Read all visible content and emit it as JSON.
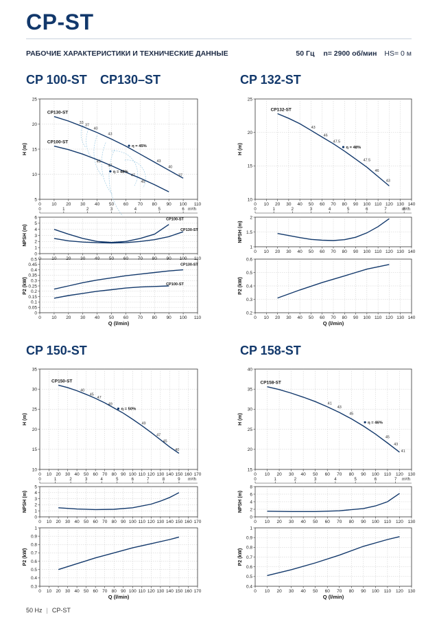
{
  "header": {
    "title": "CP-ST",
    "subtitle": "РАБОЧИЕ ХАРАКТЕРИСТИКИ И ТЕХНИЧЕСКИЕ ДАННЫЕ",
    "frequency": "50 Гц",
    "speed": "n= 2900 об/мин",
    "hs": "HS= 0 м"
  },
  "footer": {
    "left": "50 Hz",
    "right": "CP-ST"
  },
  "colors": {
    "curve": "#12386b",
    "iso": "#8fc3df",
    "grid": "#bdbdbd",
    "title": "#12386b"
  },
  "chart_data": [
    {
      "id": "cp100-130",
      "type": "line",
      "title_a": "CP 100-ST",
      "title_b": "CP130–ST",
      "qlabel": "Q (l/min)",
      "h_plot": {
        "ylabel": "H (m)",
        "xlim": [
          0,
          110
        ],
        "ylim": [
          5,
          25
        ],
        "xticks": [
          0,
          10,
          20,
          30,
          40,
          50,
          60,
          70,
          80,
          90,
          100,
          110
        ],
        "yticks": [
          5,
          10,
          15,
          20,
          25
        ],
        "m3h_ticks": [
          0,
          1,
          2,
          3,
          4,
          5,
          6
        ],
        "m3h_unit": "m³/h",
        "series": [
          {
            "name": "CP130-ST",
            "x": [
              10,
              20,
              30,
              40,
              50,
              60,
              70,
              80,
              90,
              100
            ],
            "y": [
              21.5,
              20.6,
              19.5,
              18.3,
              17.0,
              15.6,
              14.0,
              12.4,
              10.8,
              9.2
            ]
          },
          {
            "name": "CP100-ST",
            "x": [
              10,
              20,
              30,
              40,
              50,
              60,
              70,
              80,
              90
            ],
            "y": [
              15.6,
              14.9,
              14.0,
              12.9,
              11.7,
              10.4,
              9.2,
              7.9,
              6.5
            ]
          }
        ],
        "labels": [
          {
            "text": "33",
            "x": 29,
            "y": 20.1
          },
          {
            "text": "37",
            "x": 33,
            "y": 19.6
          },
          {
            "text": "40",
            "x": 39,
            "y": 18.9
          },
          {
            "text": "43",
            "x": 49,
            "y": 17.8
          },
          {
            "text": "η = 45%",
            "x": 67,
            "y": 15.4
          },
          {
            "text": "43",
            "x": 83,
            "y": 12.4
          },
          {
            "text": "40",
            "x": 91,
            "y": 11.2
          },
          {
            "text": "37",
            "x": 98,
            "y": 9.6
          },
          {
            "text": "45",
            "x": 41,
            "y": 12.3
          },
          {
            "text": "47",
            "x": 49,
            "y": 11.5
          },
          {
            "text": "η = 48%",
            "x": 54,
            "y": 10.3
          },
          {
            "text": "47",
            "x": 65,
            "y": 9.6
          },
          {
            "text": "45",
            "x": 72,
            "y": 8.3
          }
        ]
      },
      "npsh_plot": {
        "ylabel": "NPSH (m)",
        "xlim": [
          0,
          110
        ],
        "ylim": [
          0,
          6
        ],
        "xticks": [
          0,
          10,
          20,
          30,
          40,
          50,
          60,
          70,
          80,
          90,
          100,
          110
        ],
        "yticks": [
          0,
          1,
          2,
          3,
          4,
          5,
          6
        ],
        "series": [
          {
            "name": "CP100-ST",
            "x": [
              10,
              20,
              30,
              40,
              50,
              60,
              70,
              80,
              90
            ],
            "y": [
              4.0,
              3.2,
              2.5,
              2.0,
              1.85,
              2.0,
              2.5,
              3.2,
              4.8
            ]
          },
          {
            "name": "CP130-ST",
            "x": [
              10,
              20,
              30,
              40,
              50,
              60,
              70,
              80,
              90,
              100
            ],
            "y": [
              2.5,
              2.1,
              1.9,
              1.8,
              1.75,
              1.8,
              2.0,
              2.3,
              2.8,
              3.6
            ]
          }
        ]
      },
      "p2_plot": {
        "ylabel": "P2 (kW)",
        "xlim": [
          0,
          110
        ],
        "ylim": [
          0,
          0.5
        ],
        "xticks": [
          0,
          10,
          20,
          30,
          40,
          50,
          60,
          70,
          80,
          90,
          100,
          110
        ],
        "yticks": [
          0,
          0.05,
          0.1,
          0.15,
          0.2,
          0.25,
          0.3,
          0.35,
          0.4,
          0.45,
          0.5
        ],
        "series": [
          {
            "name": "CP130-ST",
            "x": [
              10,
              20,
              30,
              40,
              50,
              60,
              70,
              80,
              90,
              100
            ],
            "y": [
              0.22,
              0.25,
              0.28,
              0.305,
              0.325,
              0.345,
              0.36,
              0.375,
              0.39,
              0.4
            ]
          },
          {
            "name": "CP100-ST",
            "x": [
              10,
              20,
              30,
              40,
              50,
              60,
              70,
              80,
              90
            ],
            "y": [
              0.135,
              0.16,
              0.18,
              0.2,
              0.215,
              0.23,
              0.24,
              0.245,
              0.25
            ]
          }
        ]
      }
    },
    {
      "id": "cp132",
      "type": "line",
      "title_a": "CP 132-ST",
      "title_b": "",
      "qlabel": "Q (l/min)",
      "h_plot": {
        "ylabel": "H (m)",
        "xlim": [
          0,
          140
        ],
        "ylim": [
          10,
          25
        ],
        "xticks": [
          0,
          10,
          20,
          30,
          40,
          50,
          60,
          70,
          80,
          90,
          100,
          110,
          120,
          130,
          140
        ],
        "yticks": [
          10,
          15,
          20,
          25
        ],
        "m3h_ticks": [
          0,
          1,
          2,
          3,
          4,
          5,
          6,
          7,
          8
        ],
        "m3h_unit": "m³/h",
        "series": [
          {
            "name": "CP132-ST",
            "x": [
              20,
              30,
              40,
              50,
              60,
              70,
              80,
              90,
              100,
              110,
              120
            ],
            "y": [
              22.8,
              22.1,
              21.3,
              20.3,
              19.3,
              18.3,
              17.2,
              16.0,
              14.8,
              13.4,
              12.0
            ]
          }
        ],
        "labels": [
          {
            "text": "43",
            "x": 52,
            "y": 20.6
          },
          {
            "text": "46",
            "x": 63,
            "y": 19.4
          },
          {
            "text": "47.5",
            "x": 73,
            "y": 18.5
          },
          {
            "text": "η = 48%",
            "x": 85,
            "y": 17.6
          },
          {
            "text": "47.5",
            "x": 100,
            "y": 15.7
          },
          {
            "text": "46",
            "x": 109,
            "y": 14.1
          },
          {
            "text": "43",
            "x": 119,
            "y": 12.6
          }
        ]
      },
      "npsh_plot": {
        "ylabel": "NPSH (m)",
        "xlim": [
          0,
          140
        ],
        "ylim": [
          1,
          2
        ],
        "xticks": [
          0,
          10,
          20,
          30,
          40,
          50,
          60,
          70,
          80,
          90,
          100,
          110,
          120,
          130,
          140
        ],
        "yticks": [
          1,
          1.5,
          2
        ],
        "series": [
          {
            "name": "",
            "x": [
              20,
              30,
              40,
              50,
              60,
              70,
              80,
              90,
              100,
              110,
              120
            ],
            "y": [
              1.45,
              1.38,
              1.31,
              1.25,
              1.22,
              1.21,
              1.24,
              1.32,
              1.47,
              1.68,
              1.95
            ]
          }
        ]
      },
      "p2_plot": {
        "ylabel": "P2 (kW)",
        "xlim": [
          0,
          140
        ],
        "ylim": [
          0.2,
          0.6
        ],
        "xticks": [
          0,
          10,
          20,
          30,
          40,
          50,
          60,
          70,
          80,
          90,
          100,
          110,
          120,
          130,
          140
        ],
        "yticks": [
          0.2,
          0.3,
          0.4,
          0.5,
          0.6
        ],
        "series": [
          {
            "name": "",
            "x": [
              20,
              40,
              60,
              80,
              100,
              120
            ],
            "y": [
              0.31,
              0.37,
              0.425,
              0.475,
              0.525,
              0.56
            ]
          }
        ]
      }
    },
    {
      "id": "cp150",
      "type": "line",
      "title_a": "CP 150-ST",
      "title_b": "",
      "qlabel": "Q (l/min)",
      "h_plot": {
        "ylabel": "H (m)",
        "xlim": [
          0,
          170
        ],
        "ylim": [
          10,
          35
        ],
        "xticks": [
          0,
          10,
          20,
          30,
          40,
          50,
          60,
          70,
          80,
          90,
          100,
          110,
          120,
          130,
          140,
          150,
          160,
          170
        ],
        "yticks": [
          10,
          15,
          20,
          25,
          30,
          35
        ],
        "m3h_ticks": [
          0,
          1,
          2,
          3,
          4,
          5,
          6,
          7,
          8,
          9
        ],
        "m3h_unit": "m³/h",
        "series": [
          {
            "name": "CP150-ST",
            "x": [
              20,
              30,
              40,
              50,
              60,
              70,
              80,
              90,
              100,
              110,
              120,
              130,
              140,
              150
            ],
            "y": [
              31.0,
              30.4,
              29.6,
              28.7,
              27.7,
              26.6,
              25.3,
              24.0,
              22.5,
              20.9,
              19.2,
              17.4,
              15.6,
              14.0
            ]
          }
        ],
        "labels": [
          {
            "text": "40",
            "x": 46,
            "y": 29.4
          },
          {
            "text": "45",
            "x": 56,
            "y": 28.4
          },
          {
            "text": "47",
            "x": 64,
            "y": 27.6
          },
          {
            "text": "49",
            "x": 76,
            "y": 26.0
          },
          {
            "text": "η = 50%",
            "x": 92,
            "y": 24.8
          },
          {
            "text": "49",
            "x": 112,
            "y": 21.2
          },
          {
            "text": "47",
            "x": 128,
            "y": 18.3
          },
          {
            "text": "45",
            "x": 135,
            "y": 16.8
          },
          {
            "text": "40",
            "x": 148,
            "y": 14.6
          }
        ]
      },
      "npsh_plot": {
        "ylabel": "NPSH (m)",
        "xlim": [
          0,
          170
        ],
        "ylim": [
          0,
          5
        ],
        "xticks": [
          0,
          10,
          20,
          30,
          40,
          50,
          60,
          70,
          80,
          90,
          100,
          110,
          120,
          130,
          140,
          150,
          160,
          170
        ],
        "yticks": [
          0,
          1,
          2,
          3,
          4,
          5
        ],
        "series": [
          {
            "name": "",
            "x": [
              20,
              40,
              60,
              80,
              100,
              120,
              130,
              140,
              150
            ],
            "y": [
              1.5,
              1.3,
              1.2,
              1.25,
              1.5,
              2.1,
              2.6,
              3.2,
              4.0
            ]
          }
        ]
      },
      "p2_plot": {
        "ylabel": "P2 (kW)",
        "xlim": [
          0,
          170
        ],
        "ylim": [
          0.3,
          1
        ],
        "xticks": [
          0,
          10,
          20,
          30,
          40,
          50,
          60,
          70,
          80,
          90,
          100,
          110,
          120,
          130,
          140,
          150,
          160,
          170
        ],
        "yticks": [
          0.3,
          0.4,
          0.5,
          0.6,
          0.7,
          0.8,
          0.9,
          1
        ],
        "series": [
          {
            "name": "",
            "x": [
              20,
              40,
              60,
              80,
              100,
              120,
              140,
              150
            ],
            "y": [
              0.5,
              0.57,
              0.64,
              0.7,
              0.76,
              0.81,
              0.86,
              0.89
            ]
          }
        ]
      }
    },
    {
      "id": "cp158",
      "type": "line",
      "title_a": "CP 158-ST",
      "title_b": "",
      "qlabel": "Q (l/min)",
      "h_plot": {
        "ylabel": "H (m)",
        "xlim": [
          0,
          130
        ],
        "ylim": [
          15,
          40
        ],
        "xticks": [
          0,
          10,
          20,
          30,
          40,
          50,
          60,
          70,
          80,
          90,
          100,
          110,
          120,
          130
        ],
        "yticks": [
          15,
          20,
          25,
          30,
          35,
          40
        ],
        "m3h_ticks": [
          0,
          1,
          2,
          3,
          4,
          5,
          6,
          7
        ],
        "m3h_unit": "m³/h",
        "series": [
          {
            "name": "CP158-ST",
            "x": [
              10,
              20,
              30,
              40,
              50,
              60,
              70,
              80,
              90,
              100,
              110,
              120
            ],
            "y": [
              35.6,
              34.9,
              34.0,
              33.0,
              31.9,
              30.6,
              29.2,
              27.6,
              25.8,
              23.8,
              21.6,
              19.3
            ]
          }
        ],
        "labels": [
          {
            "text": "41",
            "x": 62,
            "y": 31.2
          },
          {
            "text": "43",
            "x": 70,
            "y": 30.2
          },
          {
            "text": "45",
            "x": 80,
            "y": 28.6
          },
          {
            "text": "η = 46%",
            "x": 97,
            "y": 26.4
          },
          {
            "text": "45",
            "x": 110,
            "y": 22.8
          },
          {
            "text": "43",
            "x": 117,
            "y": 21.0
          },
          {
            "text": "41",
            "x": 123,
            "y": 19.3
          }
        ]
      },
      "npsh_plot": {
        "ylabel": "NPSH (m)",
        "xlim": [
          0,
          130
        ],
        "ylim": [
          0,
          8
        ],
        "xticks": [
          0,
          10,
          20,
          30,
          40,
          50,
          60,
          70,
          80,
          90,
          100,
          110,
          120,
          130
        ],
        "yticks": [
          0,
          2,
          4,
          6,
          8
        ],
        "series": [
          {
            "name": "",
            "x": [
              10,
              30,
              50,
              70,
              90,
              100,
              110,
              120
            ],
            "y": [
              1.5,
              1.4,
              1.4,
              1.6,
              2.2,
              2.9,
              4.0,
              6.2
            ]
          }
        ]
      },
      "p2_plot": {
        "ylabel": "P2 (kW)",
        "xlim": [
          0,
          130
        ],
        "ylim": [
          0.4,
          1
        ],
        "xticks": [
          0,
          10,
          20,
          30,
          40,
          50,
          60,
          70,
          80,
          90,
          100,
          110,
          120,
          130
        ],
        "yticks": [
          0.4,
          0.5,
          0.6,
          0.7,
          0.8,
          0.9,
          1
        ],
        "series": [
          {
            "name": "",
            "x": [
              10,
              30,
              50,
              70,
              90,
              110,
              120
            ],
            "y": [
              0.51,
              0.57,
              0.64,
              0.72,
              0.81,
              0.88,
              0.91
            ]
          }
        ]
      }
    }
  ]
}
